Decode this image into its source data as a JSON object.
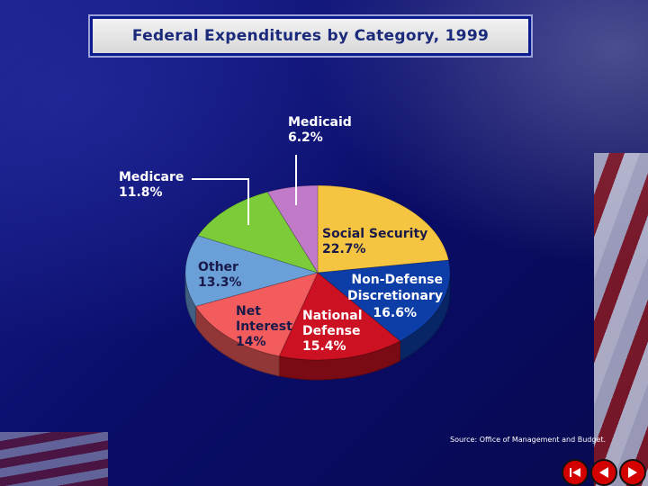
{
  "title": "Federal Expenditures by Category, 1999",
  "source": "Source: Office of Management and Budget.",
  "colors": {
    "social_security": "#f5c542",
    "non_defense": "#0d3ea8",
    "national_defense": "#cc1122",
    "net_interest": "#f25c5c",
    "other": "#6a9fd8",
    "medicare": "#7ccc3a",
    "medicaid": "#c07ac8",
    "label_text": "#ffffff",
    "label_dark": "#1a1a4a"
  },
  "labels": {
    "medicaid": [
      "Medicaid",
      "6.2%"
    ],
    "medicare": [
      "Medicare",
      "11.8%"
    ],
    "social_security": [
      "Social Security",
      "22.7%"
    ],
    "other": [
      "Other",
      "13.3%"
    ],
    "non_defense": [
      "Non-Defense",
      "Discretionary",
      "16.6%"
    ],
    "net_interest": [
      "Net",
      "Interest",
      "14%"
    ],
    "national_defense": [
      "National",
      "Defense",
      "15.4%"
    ]
  },
  "chart_data": {
    "type": "pie",
    "title": "Federal Expenditures by Category, 1999",
    "categories": [
      "Social Security",
      "Non-Defense Discretionary",
      "National Defense",
      "Net Interest",
      "Other",
      "Medicare",
      "Medicaid"
    ],
    "values": [
      22.7,
      16.6,
      15.4,
      14,
      13.3,
      11.8,
      6.2
    ],
    "unit": "%"
  },
  "nav": {
    "first_icon": "skip-to-start-icon",
    "prev_icon": "previous-icon",
    "next_icon": "next-icon"
  }
}
